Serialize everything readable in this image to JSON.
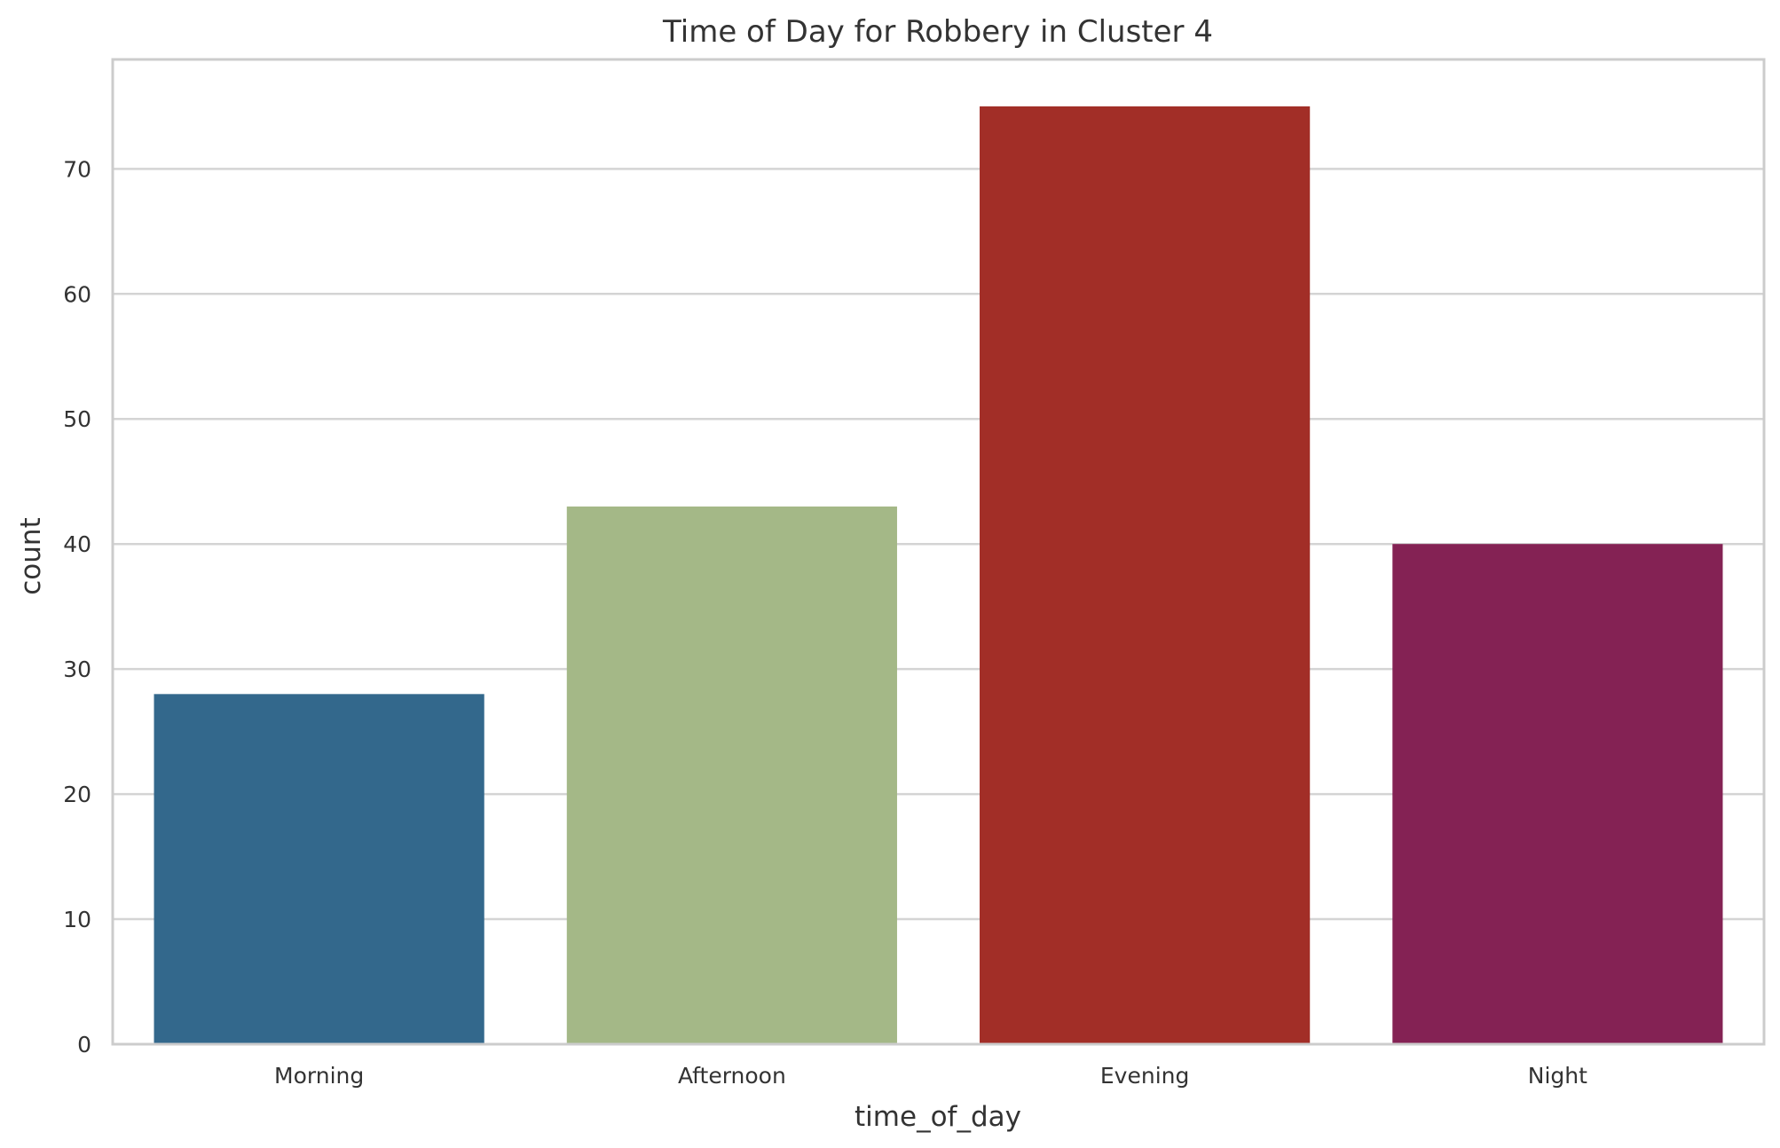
{
  "chart_data": {
    "type": "bar",
    "title": "Time of Day for Robbery in Cluster 4",
    "xlabel": "time_of_day",
    "ylabel": "count",
    "categories": [
      "Morning",
      "Afternoon",
      "Evening",
      "Night"
    ],
    "values": [
      28,
      43,
      75,
      40
    ],
    "colors": [
      "#33688c",
      "#a4b887",
      "#a22e27",
      "#842254"
    ],
    "ylim": [
      0,
      78.75
    ],
    "yticks": [
      "0",
      "10",
      "20",
      "30",
      "40",
      "50",
      "60",
      "70"
    ],
    "grid": true,
    "legend": "none"
  }
}
